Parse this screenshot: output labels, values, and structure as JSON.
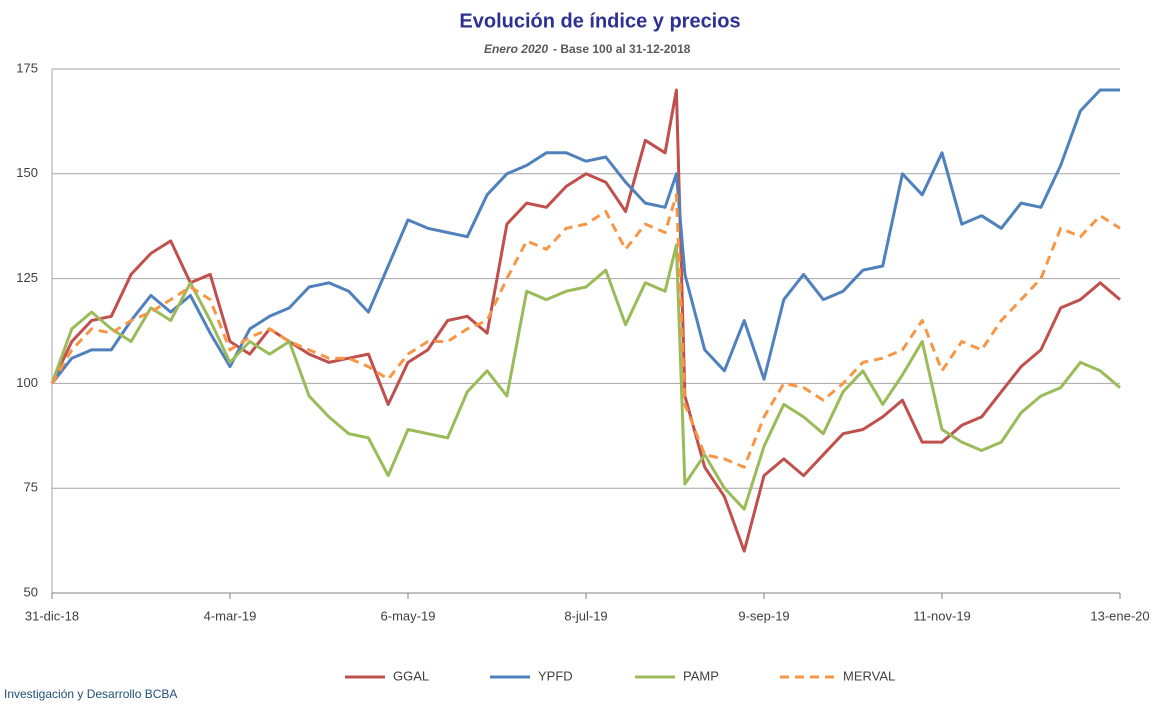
{
  "chart_data": {
    "type": "line",
    "title": "Evolución de índice y precios",
    "subtitle_date": "Enero 2020",
    "subtitle": "- Base 100 al 31-12-2018",
    "source": "Investigación y Desarrollo BCBA",
    "x": [
      "2018-12-31",
      "2019-01-07",
      "2019-01-14",
      "2019-01-21",
      "2019-01-28",
      "2019-02-04",
      "2019-02-11",
      "2019-02-18",
      "2019-02-25",
      "2019-03-04",
      "2019-03-11",
      "2019-03-18",
      "2019-03-25",
      "2019-04-01",
      "2019-04-08",
      "2019-04-15",
      "2019-04-22",
      "2019-04-29",
      "2019-05-06",
      "2019-05-13",
      "2019-05-20",
      "2019-05-27",
      "2019-06-03",
      "2019-06-10",
      "2019-06-17",
      "2019-06-24",
      "2019-07-01",
      "2019-07-08",
      "2019-07-15",
      "2019-07-22",
      "2019-07-29",
      "2019-08-05",
      "2019-08-09",
      "2019-08-12",
      "2019-08-19",
      "2019-08-26",
      "2019-09-02",
      "2019-09-09",
      "2019-09-16",
      "2019-09-23",
      "2019-09-30",
      "2019-10-07",
      "2019-10-14",
      "2019-10-21",
      "2019-10-28",
      "2019-11-04",
      "2019-11-11",
      "2019-11-18",
      "2019-11-25",
      "2019-12-02",
      "2019-12-09",
      "2019-12-16",
      "2019-12-23",
      "2019-12-30",
      "2020-01-06",
      "2020-01-13"
    ],
    "series": [
      {
        "name": "GGAL",
        "color": "#c0504d",
        "style": "solid",
        "values": [
          100,
          110,
          115,
          116,
          126,
          131,
          134,
          124,
          126,
          110,
          107,
          113,
          110,
          107,
          105,
          106,
          107,
          95,
          105,
          108,
          115,
          116,
          112,
          138,
          143,
          142,
          147,
          150,
          148,
          141,
          158,
          155,
          170,
          97,
          80,
          73,
          60,
          78,
          82,
          78,
          83,
          88,
          89,
          92,
          96,
          86,
          86,
          90,
          92,
          98,
          104,
          108,
          118,
          120,
          124,
          120
        ]
      },
      {
        "name": "YPFD",
        "color": "#4f81bd",
        "style": "solid",
        "values": [
          100,
          106,
          108,
          108,
          115,
          121,
          117,
          121,
          112,
          104,
          113,
          116,
          118,
          123,
          124,
          122,
          117,
          128,
          139,
          137,
          136,
          135,
          145,
          150,
          152,
          155,
          155,
          153,
          154,
          148,
          143,
          142,
          150,
          126,
          108,
          103,
          115,
          101,
          120,
          126,
          120,
          122,
          127,
          128,
          150,
          145,
          155,
          138,
          140,
          137,
          143,
          142,
          152,
          165,
          170,
          170
        ]
      },
      {
        "name": "PAMP",
        "color": "#9bbb59",
        "style": "solid",
        "values": [
          100,
          113,
          117,
          113,
          110,
          118,
          115,
          124,
          115,
          105,
          110,
          107,
          110,
          97,
          92,
          88,
          87,
          78,
          89,
          88,
          87,
          98,
          103,
          97,
          122,
          120,
          122,
          123,
          127,
          114,
          124,
          122,
          133,
          76,
          83,
          75,
          70,
          85,
          95,
          92,
          88,
          98,
          103,
          95,
          102,
          110,
          89,
          86,
          84,
          86,
          93,
          97,
          99,
          105,
          103,
          99
        ]
      },
      {
        "name": "MERVAL",
        "color": "#f79646",
        "style": "dashed",
        "values": [
          100,
          108,
          113,
          112,
          115,
          117,
          120,
          123,
          120,
          108,
          111,
          113,
          110,
          108,
          106,
          106,
          104,
          101,
          107,
          110,
          110,
          113,
          115,
          125,
          134,
          132,
          137,
          138,
          141,
          132,
          138,
          136,
          145,
          95,
          83,
          82,
          80,
          92,
          100,
          99,
          96,
          100,
          105,
          106,
          108,
          115,
          103,
          110,
          108,
          115,
          120,
          125,
          137,
          135,
          140,
          137
        ]
      }
    ],
    "xlim": [
      "2018-12-31",
      "2020-01-13"
    ],
    "xticks": [
      {
        "value": "2018-12-31",
        "label": "31-dic-18"
      },
      {
        "value": "2019-03-04",
        "label": "4-mar-19"
      },
      {
        "value": "2019-05-06",
        "label": "6-may-19"
      },
      {
        "value": "2019-07-08",
        "label": "8-jul-19"
      },
      {
        "value": "2019-09-09",
        "label": "9-sep-19"
      },
      {
        "value": "2019-11-11",
        "label": "11-nov-19"
      },
      {
        "value": "2020-01-13",
        "label": "13-ene-20"
      }
    ],
    "ylim": [
      50,
      175
    ],
    "yticks": [
      50,
      75,
      100,
      125,
      150,
      175
    ],
    "grid": true,
    "legend": "bottom"
  }
}
